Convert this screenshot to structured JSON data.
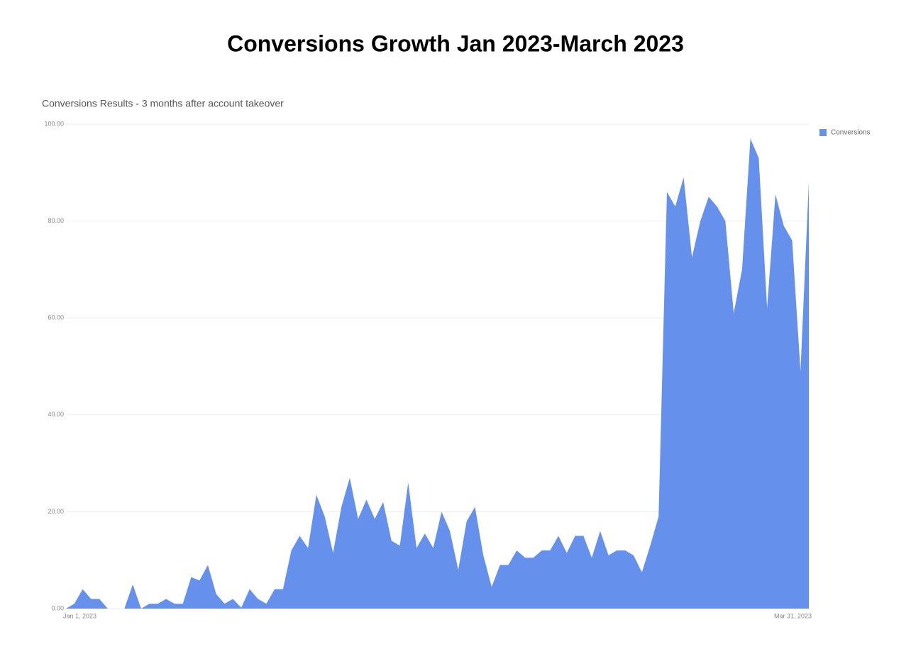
{
  "chart_data": {
    "type": "area",
    "title": "Conversions Growth Jan 2023-March 2023",
    "subtitle": "Conversions Results - 3 months after account takeover",
    "categories": [
      "Jan 1, 2023",
      null,
      null,
      null,
      null,
      null,
      null,
      null,
      null,
      null,
      null,
      null,
      null,
      null,
      null,
      null,
      null,
      null,
      null,
      null,
      null,
      null,
      null,
      null,
      null,
      null,
      null,
      null,
      null,
      null,
      null,
      null,
      null,
      null,
      null,
      null,
      null,
      null,
      null,
      null,
      null,
      null,
      null,
      null,
      null,
      null,
      null,
      null,
      null,
      null,
      null,
      null,
      null,
      null,
      null,
      null,
      null,
      null,
      null,
      null,
      null,
      null,
      null,
      null,
      null,
      null,
      null,
      null,
      null,
      null,
      null,
      null,
      null,
      null,
      null,
      null,
      null,
      null,
      null,
      null,
      null,
      null,
      null,
      null,
      null,
      null,
      null,
      null,
      null,
      "Mar 31, 2023"
    ],
    "series": [
      {
        "name": "Conversions",
        "color": "#6590ec",
        "values": [
          0,
          1,
          4,
          2,
          2,
          0,
          0,
          0,
          5,
          0,
          1,
          1,
          2,
          1,
          1,
          6.5,
          5.8,
          9,
          3,
          1,
          2,
          0.2,
          4,
          2,
          1,
          4,
          4,
          12,
          15,
          12.5,
          23.5,
          19,
          11.5,
          21,
          27,
          18.5,
          22.5,
          18.5,
          22,
          14,
          13,
          26,
          12.5,
          15.5,
          12.5,
          20,
          16,
          8,
          18,
          21,
          11,
          4.5,
          9,
          9,
          12,
          10.5,
          10.5,
          12,
          12,
          15,
          11.5,
          15,
          15,
          10.5,
          16,
          11,
          12,
          12,
          11,
          7.5,
          13,
          19,
          86,
          83,
          89,
          72.5,
          80,
          85,
          83,
          80,
          61,
          70,
          97,
          93,
          62,
          85.5,
          79,
          76,
          49,
          88
        ]
      }
    ],
    "ylim": [
      0,
      100
    ],
    "yticks": [
      {
        "value": 0,
        "label": "0.00"
      },
      {
        "value": 20,
        "label": "20.00"
      },
      {
        "value": 40,
        "label": "40.00"
      },
      {
        "value": 60,
        "label": "60.00"
      },
      {
        "value": 80,
        "label": "80.00"
      },
      {
        "value": 100,
        "label": "100.00"
      }
    ],
    "grid": true,
    "legend": "right"
  }
}
